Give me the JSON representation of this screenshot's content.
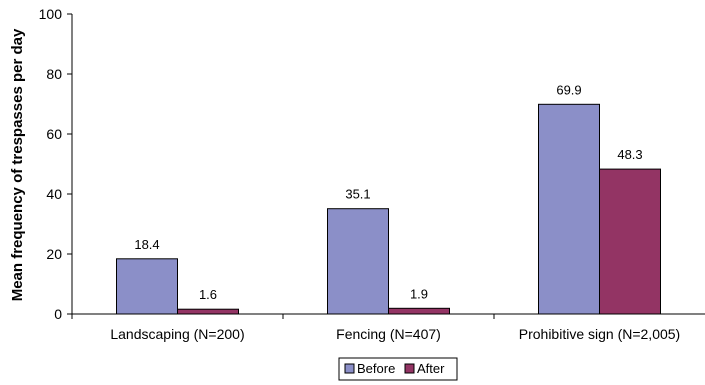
{
  "chart_data": {
    "type": "bar",
    "title": "",
    "xlabel": "",
    "ylabel": "Mean frequency of trespasses per day",
    "ylim": [
      0,
      100
    ],
    "yticks": [
      0,
      20,
      40,
      60,
      80,
      100
    ],
    "categories": [
      "Landscaping (N=200)",
      "Fencing (N=407)",
      "Prohibitive sign (N=2,005)"
    ],
    "series": [
      {
        "name": "Before",
        "values": [
          18.4,
          35.1,
          69.9
        ],
        "color": "#8b8fc8"
      },
      {
        "name": "After",
        "values": [
          1.6,
          1.9,
          48.3
        ],
        "color": "#933464"
      }
    ],
    "value_labels": [
      [
        "18.4",
        "35.1",
        "69.9"
      ],
      [
        "1.6",
        "1.9",
        "48.3"
      ]
    ],
    "grid": false,
    "legend": "bottom-center"
  }
}
